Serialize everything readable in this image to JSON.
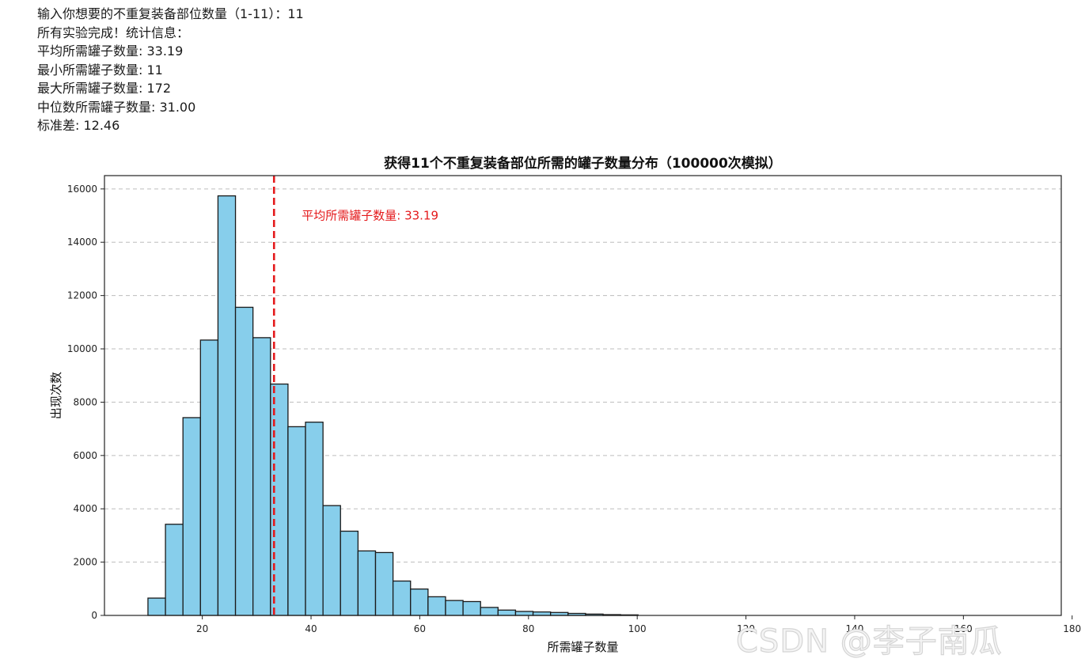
{
  "console": {
    "lines": [
      "输入你想要的不重复装备部位数量（1-11）：11",
      "所有实验完成！统计信息：",
      "平均所需罐子数量: 33.19",
      "最小所需罐子数量: 11",
      "最大所需罐子数量: 172",
      "中位数所需罐子数量: 31.00",
      "标准差: 12.46"
    ]
  },
  "chart_data": {
    "type": "bar",
    "title": "获得11个不重复装备部位所需的罐子数量分布（100000次模拟）",
    "xlabel": "所需罐子数量",
    "ylabel": "出现次数",
    "xlim": [
      2,
      178
    ],
    "ylim": [
      0,
      16500
    ],
    "xticks": [
      20,
      40,
      60,
      80,
      100,
      120,
      140,
      160,
      180
    ],
    "yticks": [
      0,
      2000,
      4000,
      6000,
      8000,
      10000,
      12000,
      14000,
      16000
    ],
    "grid": "y-dashed",
    "bin_edges": [
      10.0,
      13.22,
      16.44,
      19.66,
      22.88,
      26.1,
      29.32,
      32.54,
      35.76,
      38.98,
      42.2,
      45.42,
      48.64,
      51.86,
      55.08,
      58.3,
      61.52,
      64.74,
      67.96,
      71.18,
      74.4,
      77.62,
      80.84,
      84.06,
      87.28,
      90.5,
      93.72,
      96.94,
      100.16
    ],
    "counts": [
      650,
      3420,
      7420,
      10330,
      15740,
      11560,
      10420,
      8680,
      7080,
      7250,
      4120,
      3160,
      2420,
      2360,
      1290,
      990,
      700,
      560,
      520,
      300,
      200,
      150,
      130,
      110,
      75,
      50,
      30,
      20
    ],
    "mean_line": {
      "x": 33.19,
      "label": "平均所需罐子数量: 33.19",
      "color": "#e41a1c"
    },
    "bar_fill": "#87ceeb",
    "bar_edge": "#1a1a1a"
  },
  "watermark": "CSDN @李子南瓜"
}
